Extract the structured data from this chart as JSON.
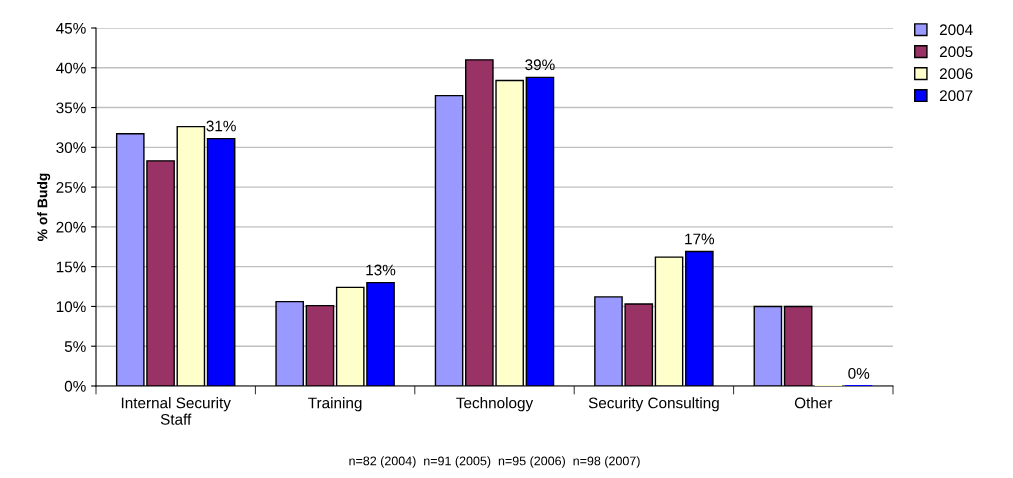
{
  "chart_data": {
    "type": "bar",
    "ylabel": "% of Budg",
    "categories": [
      "Internal Security\nStaff",
      "Training",
      "Technology",
      "Security Consulting",
      "Other"
    ],
    "series": [
      {
        "name": "2004",
        "color": "#9999ff",
        "values": [
          31.7,
          10.6,
          36.5,
          11.2,
          10.0
        ]
      },
      {
        "name": "2005",
        "color": "#993366",
        "values": [
          28.3,
          10.1,
          41.0,
          10.3,
          10.0
        ]
      },
      {
        "name": "2006",
        "color": "#ffffcc",
        "values": [
          32.6,
          12.4,
          38.4,
          16.2,
          null
        ]
      },
      {
        "name": "2007",
        "color": "#0000ff",
        "values": [
          31.1,
          13.0,
          38.8,
          16.9,
          0
        ],
        "value_labels": [
          "31%",
          "13%",
          "39%",
          "17%",
          "0%"
        ]
      }
    ],
    "ylim": [
      0,
      45
    ],
    "yticks": [
      {
        "value": 0,
        "label": "0%"
      },
      {
        "value": 5,
        "label": "5%"
      },
      {
        "value": 10,
        "label": "10%"
      },
      {
        "value": 15,
        "label": "15%"
      },
      {
        "value": 20,
        "label": "20%"
      },
      {
        "value": 25,
        "label": "25%"
      },
      {
        "value": 30,
        "label": "30%"
      },
      {
        "value": 35,
        "label": "35%"
      },
      {
        "value": 40,
        "label": "40%"
      },
      {
        "value": 45,
        "label": "45%"
      }
    ],
    "grid": "y",
    "legend": "top right",
    "annotations": [
      "n=82 (2004)  n=91 (2005)  n=95 (2006)  n=98 (2007)"
    ]
  }
}
